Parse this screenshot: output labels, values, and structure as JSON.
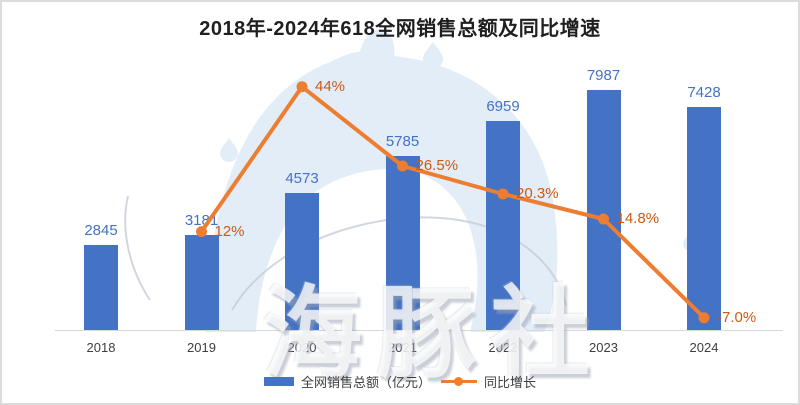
{
  "title": "2018年-2024年618全网销售总额及同比增速",
  "watermark": {
    "text": "海豚社"
  },
  "colors": {
    "bar": "#4472C4",
    "bar_label": "#4472C4",
    "line": "#ED7D31",
    "pct_label": "#C95A14",
    "axis_line": "#D9D9D9",
    "title_text": "#1F1F1F",
    "axis_text": "#3F3F3F",
    "watermark_fill": "#E3EDF8",
    "watermark_stroke": "#C3CAD4"
  },
  "legend": {
    "items": [
      {
        "label": "全网销售总额（亿元）",
        "swatch": "bar"
      },
      {
        "label": "同比增长",
        "swatch": "line"
      }
    ]
  },
  "chart_data": {
    "type": "bar+line-combo",
    "title": "2018年-2024年618全网销售总额及同比增速",
    "categories": [
      "2018",
      "2019",
      "2020",
      "2021",
      "2022",
      "2023",
      "2024"
    ],
    "series": [
      {
        "name": "全网销售总额（亿元）",
        "type": "bar",
        "values": [
          2845,
          3181,
          4573,
          5785,
          6959,
          7987,
          7428
        ],
        "labels": [
          "2845",
          "3181",
          "4573",
          "5785",
          "6959",
          "7987",
          "7428"
        ]
      },
      {
        "name": "同比增长",
        "type": "line",
        "values": [
          null,
          12,
          44,
          26.5,
          20.3,
          14.8,
          -7.0
        ],
        "labels": [
          "",
          "12%",
          "44%",
          "26.5%",
          "20.3%",
          "14.8%",
          "-7.0%"
        ]
      }
    ],
    "xlabel": "",
    "ylabel": "",
    "value_axis_range": [
      0,
      9000
    ],
    "pct_axis_visible_range": [
      -10,
      50
    ],
    "grid": false,
    "legend_position": "bottom",
    "data_labels": true
  }
}
